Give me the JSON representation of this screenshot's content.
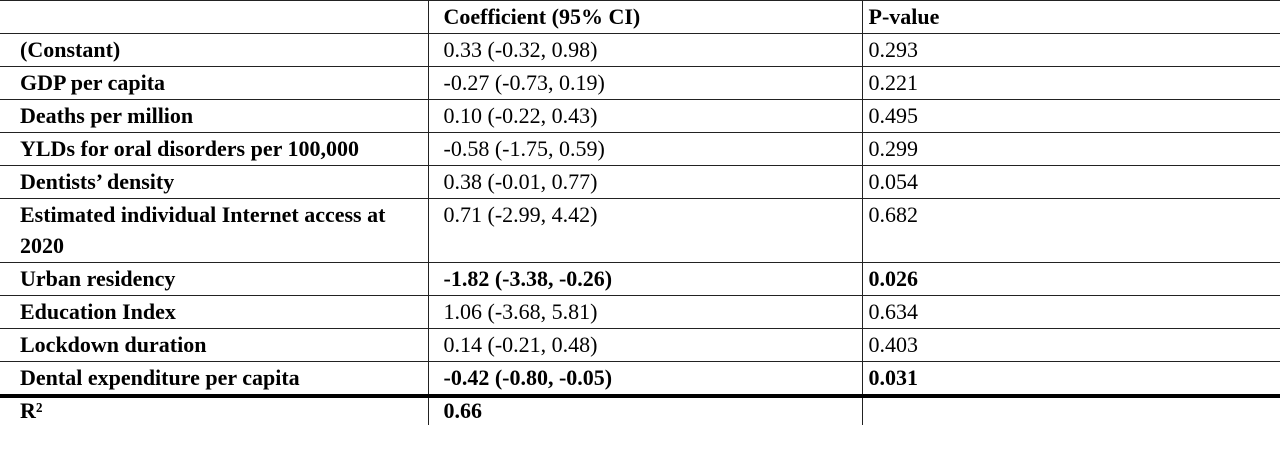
{
  "table": {
    "columns": [
      "Coefficient (95% CI)",
      "P-value"
    ],
    "rows": [
      {
        "cells": [
          "(Constant)",
          "0.33 (-0.32, 0.98)",
          "0.293"
        ]
      },
      {
        "cells": [
          "GDP per capita",
          "-0.27 (-0.73, 0.19)",
          "0.221"
        ]
      },
      {
        "cells": [
          "Deaths per million",
          "0.10 (-0.22, 0.43)",
          "0.495"
        ]
      },
      {
        "cells": [
          "YLDs for oral disorders per 100,000",
          "-0.58 (-1.75, 0.59)",
          "0.299"
        ]
      },
      {
        "cells": [
          "Dentists’ density",
          "0.38 (-0.01, 0.77)",
          "0.054"
        ]
      },
      {
        "cells": [
          "Estimated individual Internet access at 2020",
          "0.71 (-2.99, 4.42)",
          "0.682"
        ]
      },
      {
        "cells": [
          "Urban residency",
          "-1.82 (-3.38, -0.26)",
          "0.026"
        ],
        "emphasis": true
      },
      {
        "cells": [
          "Education Index",
          "1.06 (-3.68, 5.81)",
          "0.634"
        ]
      },
      {
        "cells": [
          "Lockdown duration",
          "0.14 (-0.21, 0.48)",
          "0.403"
        ]
      },
      {
        "cells": [
          "Dental expenditure per capita",
          "-0.42 (-0.80, -0.05)",
          "0.031"
        ],
        "emphasis": true
      },
      {
        "cells": [
          "R²",
          "0.66"
        ],
        "emphasis": true,
        "summary": true
      }
    ]
  }
}
